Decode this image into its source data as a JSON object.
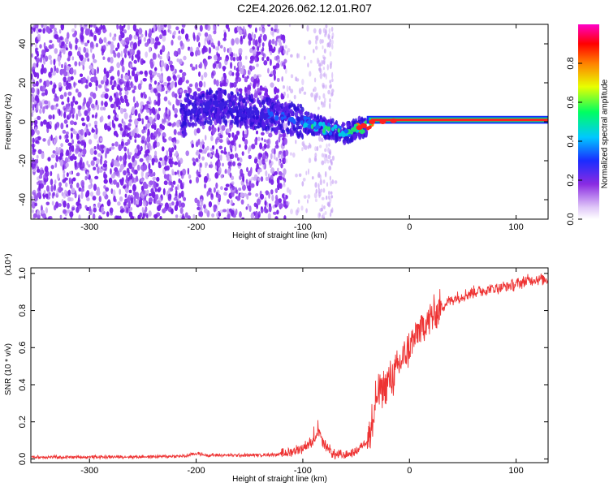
{
  "title": "C2E4.2026.062.12.01.R07",
  "chart_data": [
    {
      "type": "heatmap",
      "name": "spectrogram",
      "xlabel": "Height of straight line (km)",
      "ylabel": "Frequency (Hz)",
      "xlim": [
        -355,
        130
      ],
      "ylim": [
        -50,
        50
      ],
      "xticks": [
        -300,
        -200,
        -100,
        0,
        100
      ],
      "yticks": [
        -40,
        -20,
        0,
        20,
        40
      ],
      "xtick_labels": [
        "-300",
        "-200",
        "-100",
        "0",
        "100"
      ],
      "ytick_labels": [
        "-40",
        "-20",
        "0",
        "20",
        "40"
      ],
      "colorbar": {
        "label": "Normalized spectral amplitude",
        "range": [
          0,
          1
        ],
        "ticks": [
          0.0,
          0.2,
          0.4,
          0.6,
          0.8
        ],
        "tick_labels": [
          "0.0",
          "0.2",
          "0.4",
          "0.6",
          "0.8"
        ],
        "colormap": "rainbow"
      },
      "ridge": {
        "description_points_x": [
          -210,
          -175,
          -150,
          -120,
          -100,
          -80,
          -60,
          -50,
          -40,
          -20,
          0,
          50,
          130
        ],
        "description_points_y": [
          6,
          8,
          5,
          3,
          0,
          -3,
          -6,
          -4,
          -2,
          0,
          1,
          1,
          1
        ],
        "amplitude": [
          0.2,
          0.25,
          0.2,
          0.4,
          0.45,
          0.5,
          0.55,
          0.6,
          0.85,
          0.9,
          0.95,
          0.95,
          0.95
        ]
      },
      "colors": {
        "noise": "#7a22e8",
        "faint": "#c9a6f5",
        "ridge_hi": "#ff2020",
        "ridge_mid": "#30d0e0"
      }
    },
    {
      "type": "line",
      "name": "snr",
      "xlabel": "Height of straight line (km)",
      "ylabel": "SNR (10 * v/v)",
      "multiplier": "(x10⁴)",
      "xlim": [
        -355,
        130
      ],
      "ylim": [
        -0.02,
        1.03
      ],
      "xticks": [
        -300,
        -200,
        -100,
        0,
        100
      ],
      "yticks": [
        0.0,
        0.2,
        0.4,
        0.6,
        0.8,
        1.0
      ],
      "xtick_labels": [
        "-300",
        "-200",
        "-100",
        "0",
        "100"
      ],
      "ytick_labels": [
        "0.0",
        "0.2",
        "0.4",
        "0.6",
        "0.8",
        "1.0"
      ],
      "series": [
        {
          "name": "SNR",
          "color": "#ee3333",
          "x": [
            -355,
            -300,
            -250,
            -210,
            -200,
            -190,
            -180,
            -150,
            -120,
            -110,
            -100,
            -90,
            -85,
            -80,
            -70,
            -60,
            -50,
            -40,
            -35,
            -30,
            -25,
            -20,
            -15,
            -10,
            -5,
            0,
            10,
            20,
            30,
            40,
            50,
            60,
            70,
            80,
            90,
            100,
            110,
            120,
            130
          ],
          "values": [
            0.01,
            0.01,
            0.012,
            0.015,
            0.03,
            0.02,
            0.02,
            0.02,
            0.025,
            0.04,
            0.06,
            0.1,
            0.14,
            0.08,
            0.02,
            0.02,
            0.04,
            0.1,
            0.2,
            0.34,
            0.38,
            0.42,
            0.44,
            0.5,
            0.55,
            0.6,
            0.7,
            0.76,
            0.82,
            0.86,
            0.88,
            0.9,
            0.91,
            0.92,
            0.93,
            0.94,
            0.96,
            0.97,
            0.97
          ]
        }
      ]
    }
  ]
}
